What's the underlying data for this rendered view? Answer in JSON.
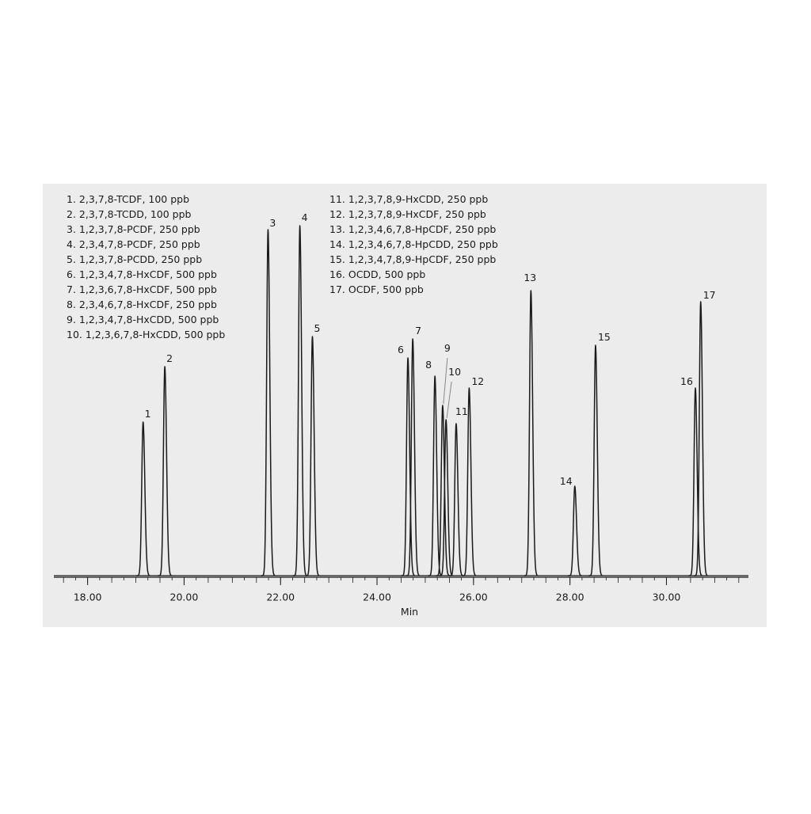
{
  "chart_data": {
    "type": "chromatogram",
    "xlabel": "Min",
    "xlim": [
      17.3,
      31.7
    ],
    "xticks": [
      {
        "value": 18,
        "label": "18.00"
      },
      {
        "value": 20,
        "label": "20.00"
      },
      {
        "value": 22,
        "label": "22.00"
      },
      {
        "value": 24,
        "label": "24.00"
      },
      {
        "value": 26,
        "label": "26.00"
      },
      {
        "value": 28,
        "label": "28.00"
      },
      {
        "value": 30,
        "label": "30.00"
      }
    ],
    "ylim": [
      0,
      460
    ],
    "color": "#1a1a1a",
    "peak_labels": [
      "1",
      "2",
      "3",
      "4",
      "5",
      "6",
      "7",
      "8",
      "9",
      "10",
      "11",
      "12",
      "13",
      "14",
      "15",
      "16",
      "17"
    ],
    "x": [
      19.15,
      19.6,
      21.74,
      22.4,
      22.66,
      24.64,
      24.74,
      25.2,
      25.36,
      25.43,
      25.64,
      25.91,
      27.19,
      28.1,
      28.53,
      30.6,
      30.71
    ],
    "values": [
      194,
      264,
      437,
      442,
      302,
      275,
      299,
      252,
      215,
      197,
      192,
      237,
      360,
      113,
      291,
      237,
      346
    ],
    "legend": [
      "1.  2,3,7,8-TCDF, 100 ppb",
      "2.  2,3,7,8-TCDD, 100 ppb",
      "3.  1,2,3,7,8-PCDF, 250 ppb",
      "4.  2,3,4,7,8-PCDF, 250 ppb",
      "5.  1,2,3,7,8-PCDD, 250 ppb",
      "6.  1,2,3,4,7,8-HxCDF, 500 ppb",
      "7.  1,2,3,6,7,8-HxCDF, 500 ppb",
      "8.  2,3,4,6,7,8-HxCDF, 250 ppb",
      "9.  1,2,3,4,7,8-HxCDD, 500 ppb",
      "10.  1,2,3,6,7,8-HxCDD, 500 ppb",
      "11.  1,2,3,7,8,9-HxCDD, 250 ppb",
      "12.  1,2,3,7,8,9-HxCDF, 250 ppb",
      "13.  1,2,3,4,6,7,8-HpCDF, 250 ppb",
      "14.  1,2,3,4,6,7,8-HpCDD, 250 ppb",
      "15.  1,2,3,4,7,8,9-HpCDF, 250 ppb",
      "16.  OCDD, 500 ppb",
      "17.  OCDF, 500 ppb"
    ]
  }
}
